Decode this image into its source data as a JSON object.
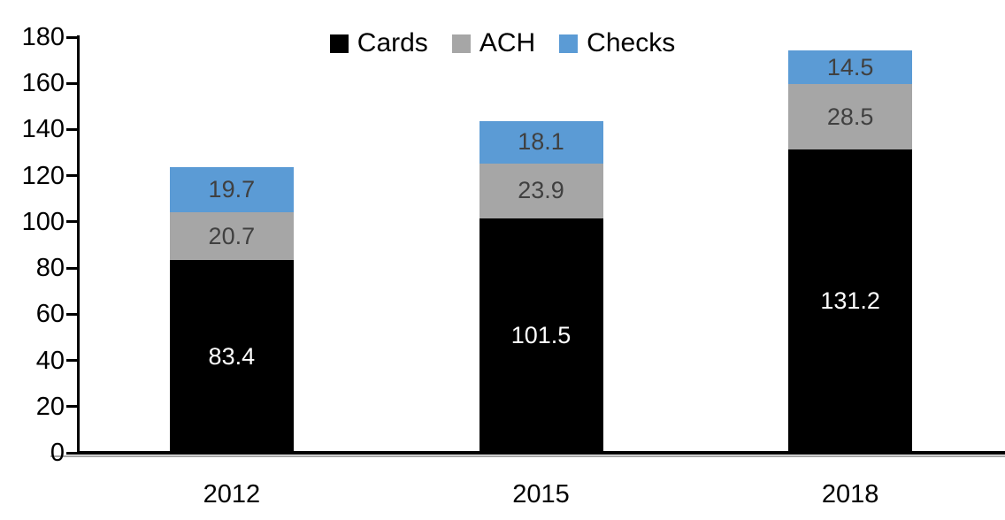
{
  "chart_data": {
    "type": "bar",
    "stacked": true,
    "title": "",
    "xlabel": "",
    "ylabel": "",
    "categories": [
      "2012",
      "2015",
      "2018"
    ],
    "series": [
      {
        "name": "Cards",
        "color": "#000000",
        "label_color": "#ffffff",
        "values": [
          83.4,
          101.5,
          131.2
        ]
      },
      {
        "name": "ACH",
        "color": "#a6a6a6",
        "label_color": "#404040",
        "values": [
          20.7,
          23.9,
          28.5
        ]
      },
      {
        "name": "Checks",
        "color": "#5b9bd5",
        "label_color": "#404040",
        "values": [
          19.7,
          18.1,
          14.5
        ]
      }
    ],
    "ylim": [
      0,
      180
    ],
    "ytick_step": 20,
    "yticks": [
      0,
      20,
      40,
      60,
      80,
      100,
      120,
      140,
      160,
      180
    ],
    "legend_position": "top-center",
    "grid": false,
    "axis_color": "#000000",
    "background_color": "#ffffff"
  }
}
